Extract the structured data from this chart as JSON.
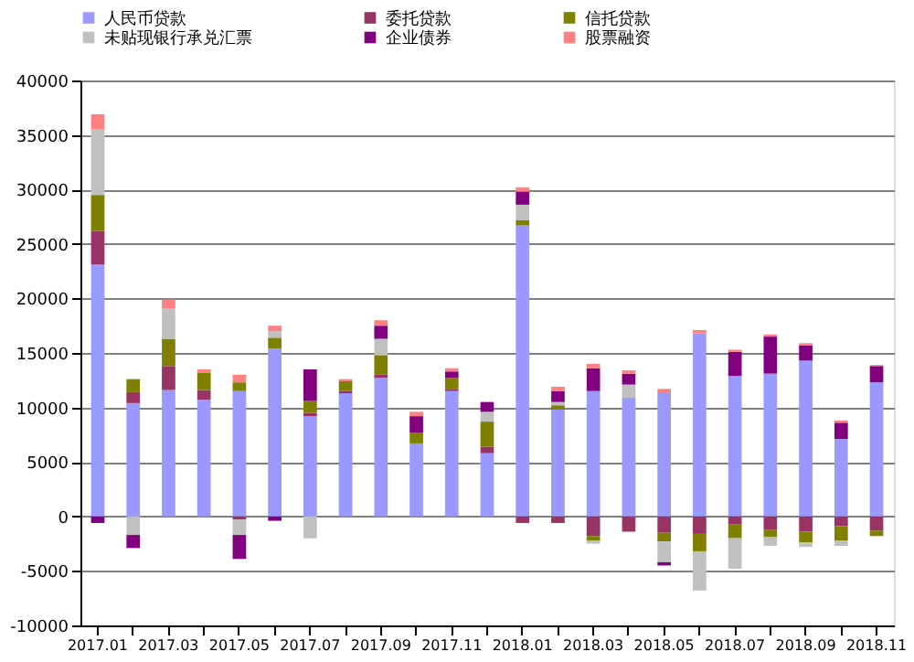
{
  "chart_data": {
    "type": "bar",
    "stacked": true,
    "categories": [
      "2017.01",
      null,
      "2017.03",
      null,
      "2017.05",
      null,
      "2017.07",
      null,
      "2017.09",
      null,
      "2017.11",
      null,
      "2018.01",
      null,
      "2018.03",
      null,
      "2018.05",
      null,
      "2018.07",
      null,
      "2018.09",
      null,
      "2018.11"
    ],
    "series": [
      {
        "name": "人民币贷款",
        "color": "#9999ff",
        "values": [
          23100,
          10400,
          11600,
          10700,
          11500,
          15400,
          9200,
          11300,
          12700,
          6700,
          11500,
          5800,
          26700,
          9800,
          11500,
          10900,
          11300,
          16800,
          12900,
          13100,
          14300,
          7100,
          12300
        ]
      },
      {
        "name": "委托贷款",
        "color": "#993366",
        "values": [
          3100,
          1000,
          2200,
          900,
          -300,
          null,
          300,
          200,
          300,
          null,
          200,
          600,
          -600,
          -600,
          -1800,
          -1400,
          -1500,
          -1600,
          -700,
          -1200,
          -1400,
          -900,
          -1300
        ]
      },
      {
        "name": "信托贷款",
        "color": "#808000",
        "values": [
          3300,
          1200,
          2500,
          1600,
          800,
          1000,
          1100,
          900,
          1800,
          1000,
          1000,
          2300,
          500,
          400,
          -400,
          null,
          -800,
          -1600,
          -1300,
          -700,
          -1000,
          -1300,
          -500
        ]
      },
      {
        "name": "未贴现银行承兑汇票",
        "color": "#c0c0c0",
        "values": [
          6000,
          -1700,
          2800,
          null,
          -1400,
          600,
          -2000,
          null,
          1500,
          null,
          null,
          900,
          1400,
          300,
          -300,
          1200,
          -1900,
          -3600,
          -2800,
          -800,
          -400,
          -500,
          null
        ]
      },
      {
        "name": "企业债券",
        "color": "#800080",
        "values": [
          -600,
          -1200,
          null,
          null,
          -2200,
          -400,
          2900,
          null,
          1200,
          1500,
          600,
          900,
          1200,
          1000,
          2100,
          1000,
          -300,
          null,
          2200,
          3400,
          1400,
          1500,
          1500
        ]
      },
      {
        "name": "股票融资",
        "color": "#ff8080",
        "values": [
          1400,
          null,
          800,
          300,
          700,
          500,
          null,
          200,
          500,
          400,
          300,
          null,
          400,
          400,
          400,
          300,
          400,
          300,
          200,
          200,
          200,
          200,
          100
        ]
      }
    ],
    "ylim": [
      -10000,
      40000
    ],
    "yticks": [
      -10000,
      -5000,
      0,
      5000,
      10000,
      15000,
      20000,
      25000,
      30000,
      35000,
      40000
    ],
    "grid": "y",
    "legend": "top"
  }
}
